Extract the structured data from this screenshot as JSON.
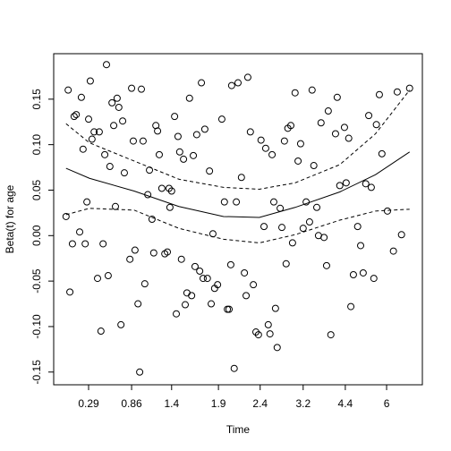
{
  "chart_data": {
    "type": "scatter",
    "xlabel": "Time",
    "ylabel": "Beta(t) for age",
    "xlim": [
      0.18,
      8.84
    ],
    "ylim": [
      -0.164,
      0.2
    ],
    "xticks": [
      {
        "value": 1,
        "label": "0.29"
      },
      {
        "value": 2.01,
        "label": "0.86"
      },
      {
        "value": 2.95,
        "label": "1.4"
      },
      {
        "value": 4.05,
        "label": "1.9"
      },
      {
        "value": 5.03,
        "label": "2.4"
      },
      {
        "value": 6.04,
        "label": "3.2"
      },
      {
        "value": 7.03,
        "label": "4.4"
      },
      {
        "value": 8.0,
        "label": "6"
      }
    ],
    "yticks": [
      -0.15,
      {
        "value": -0.1,
        "label": "-0.10"
      },
      -0.05,
      {
        "value": 0,
        "label": "0.00"
      },
      0.05,
      {
        "value": 0.1,
        "label": "0.10"
      },
      0.15
    ],
    "color": "#000000",
    "points": {
      "x": [
        0.47,
        0.52,
        0.56,
        0.62,
        0.66,
        0.71,
        0.79,
        0.83,
        0.87,
        0.92,
        0.96,
        1.0,
        1.04,
        1.08,
        1.13,
        1.21,
        1.25,
        1.29,
        1.34,
        1.38,
        1.42,
        1.46,
        1.5,
        1.55,
        1.59,
        1.63,
        1.67,
        1.71,
        1.76,
        1.8,
        1.84,
        1.97,
        2.01,
        2.05,
        2.09,
        2.16,
        2.2,
        2.24,
        2.28,
        2.32,
        2.39,
        2.43,
        2.49,
        2.53,
        2.58,
        2.62,
        2.66,
        2.72,
        2.79,
        2.85,
        2.89,
        2.91,
        2.95,
        3.02,
        3.06,
        3.1,
        3.14,
        3.18,
        3.23,
        3.27,
        3.31,
        3.37,
        3.42,
        3.46,
        3.5,
        3.54,
        3.61,
        3.65,
        3.69,
        3.73,
        3.79,
        3.84,
        3.88,
        3.92,
        3.96,
        4.03,
        4.13,
        4.19,
        4.26,
        4.3,
        4.34,
        4.36,
        4.42,
        4.47,
        4.51,
        4.59,
        4.66,
        4.7,
        4.74,
        4.8,
        4.87,
        4.93,
        4.99,
        5.05,
        5.12,
        5.16,
        5.22,
        5.26,
        5.31,
        5.35,
        5.39,
        5.43,
        5.5,
        5.54,
        5.6,
        5.64,
        5.68,
        5.75,
        5.79,
        5.85,
        5.92,
        5.98,
        6.04,
        6.11,
        6.19,
        6.25,
        6.29,
        6.36,
        6.4,
        6.46,
        6.53,
        6.59,
        6.63,
        6.69,
        6.8,
        6.84,
        6.9,
        7.01,
        7.05,
        7.11,
        7.16,
        7.22,
        7.32,
        7.39,
        7.45,
        7.51,
        7.58,
        7.64,
        7.7,
        7.76,
        7.83,
        7.89,
        8.02,
        8.16,
        8.25,
        8.35,
        8.54
      ],
      "values": [
        0.021,
        0.16,
        -0.062,
        -0.009,
        0.131,
        0.133,
        0.004,
        0.152,
        0.095,
        -0.009,
        0.037,
        0.128,
        0.17,
        0.106,
        0.114,
        -0.047,
        0.114,
        -0.105,
        -0.009,
        0.089,
        0.188,
        -0.044,
        0.076,
        0.146,
        0.121,
        0.032,
        0.151,
        0.141,
        -0.098,
        0.126,
        0.069,
        -0.026,
        0.162,
        0.104,
        -0.016,
        -0.075,
        -0.15,
        0.161,
        0.104,
        -0.053,
        0.045,
        0.072,
        0.018,
        -0.019,
        0.121,
        0.115,
        0.089,
        0.052,
        -0.02,
        -0.018,
        0.052,
        0.031,
        0.049,
        0.131,
        -0.086,
        0.109,
        0.092,
        -0.026,
        0.084,
        -0.076,
        -0.063,
        0.151,
        -0.066,
        0.088,
        -0.034,
        0.111,
        -0.039,
        0.168,
        -0.047,
        0.117,
        -0.047,
        0.071,
        -0.075,
        0.002,
        -0.058,
        -0.054,
        0.128,
        0.037,
        -0.081,
        -0.081,
        -0.032,
        0.165,
        -0.146,
        0.037,
        0.168,
        0.064,
        -0.041,
        -0.066,
        0.174,
        0.114,
        -0.054,
        -0.106,
        -0.109,
        0.105,
        0.01,
        0.096,
        -0.098,
        -0.108,
        0.089,
        0.037,
        -0.08,
        -0.123,
        0.03,
        0.009,
        0.104,
        -0.031,
        0.118,
        0.121,
        -0.008,
        0.157,
        0.082,
        0.101,
        0.008,
        0.037,
        0.015,
        0.16,
        0.077,
        0.031,
        0.0,
        0.124,
        -0.002,
        -0.033,
        0.137,
        -0.109,
        0.112,
        0.152,
        0.055,
        0.119,
        0.058,
        0.107,
        -0.078,
        -0.043,
        0.01,
        -0.011,
        -0.041,
        0.057,
        0.132,
        0.053,
        -0.047,
        0.122,
        0.155,
        0.09,
        0.027,
        -0.017,
        0.158,
        0.001,
        0.162
      ]
    },
    "line_x": [
      0.47,
      1.02,
      2.07,
      3.12,
      4.17,
      5.01,
      5.85,
      6.9,
      7.74,
      8.54
    ],
    "lines": [
      {
        "values": [
          0.074,
          0.063,
          0.049,
          0.032,
          0.021,
          0.02,
          0.031,
          0.048,
          0.067,
          0.092
        ],
        "dashed": false
      },
      {
        "values": [
          0.123,
          0.102,
          0.082,
          0.062,
          0.053,
          0.051,
          0.058,
          0.078,
          0.112,
          0.16
        ],
        "dashed": true
      },
      {
        "values": [
          0.023,
          0.03,
          0.028,
          0.008,
          -0.004,
          -0.008,
          0.001,
          0.017,
          0.027,
          0.029
        ],
        "dashed": true
      }
    ]
  }
}
